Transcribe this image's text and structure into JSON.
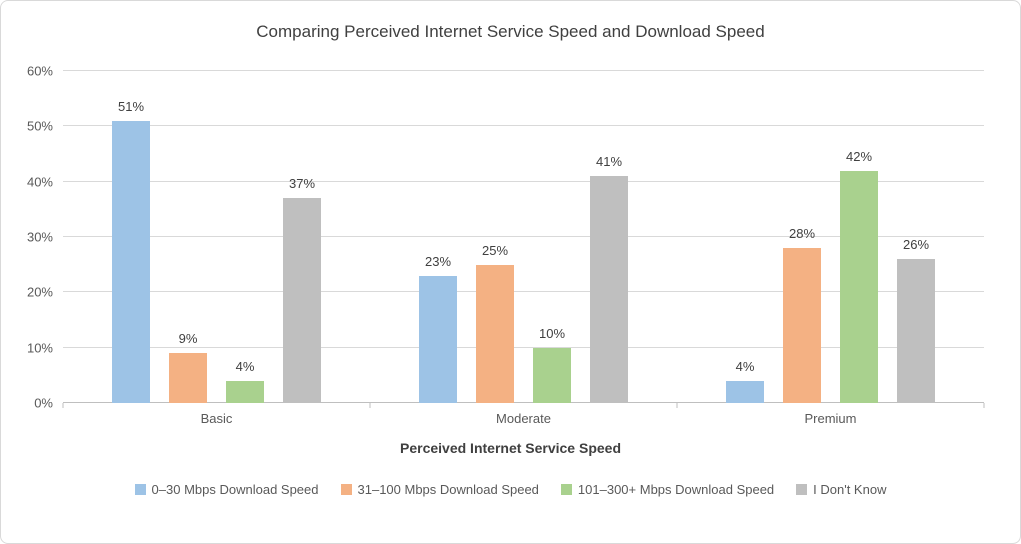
{
  "chart_data": {
    "type": "bar",
    "title": "Comparing Perceived Internet Service Speed and Download Speed",
    "categories": [
      "Basic",
      "Moderate",
      "Premium"
    ],
    "series": [
      {
        "name": "0–30 Mbps Download Speed",
        "color": "#9DC3E6",
        "values": [
          51,
          23,
          4
        ]
      },
      {
        "name": "31–100 Mbps Download Speed",
        "color": "#F4B183",
        "values": [
          9,
          25,
          28
        ]
      },
      {
        "name": "101–300+ Mbps Download Speed",
        "color": "#A9D18E",
        "values": [
          4,
          10,
          42
        ]
      },
      {
        "name": "I Don't Know",
        "color": "#BFBFBF",
        "values": [
          37,
          41,
          26
        ]
      }
    ],
    "xlabel": "Perceived Internet Service Speed",
    "ylabel": "",
    "ylim": [
      0,
      60
    ],
    "ytick_step": 10,
    "ytick_labels": [
      "0%",
      "10%",
      "20%",
      "30%",
      "40%",
      "50%",
      "60%"
    ],
    "data_label_suffix": "%",
    "grid": true,
    "legend_position": "bottom"
  }
}
